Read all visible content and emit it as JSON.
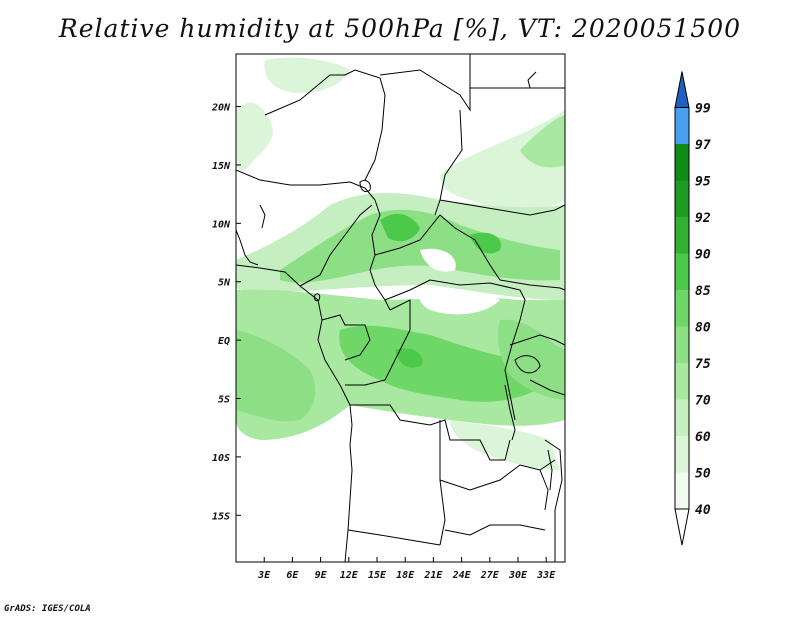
{
  "title": "Relative humidity at 500hPa [%], VT: 2020051500",
  "footer": "GrADS: IGES/COLA",
  "map": {
    "lon_range": [
      0,
      35
    ],
    "lat_range": [
      -19,
      24.5
    ],
    "lon_ticks": [
      {
        "value": 3,
        "label": "3E"
      },
      {
        "value": 6,
        "label": "6E"
      },
      {
        "value": 9,
        "label": "9E"
      },
      {
        "value": 12,
        "label": "12E"
      },
      {
        "value": 15,
        "label": "15E"
      },
      {
        "value": 18,
        "label": "18E"
      },
      {
        "value": 21,
        "label": "21E"
      },
      {
        "value": 24,
        "label": "24E"
      },
      {
        "value": 27,
        "label": "27E"
      },
      {
        "value": 30,
        "label": "30E"
      },
      {
        "value": 33,
        "label": "33E"
      }
    ],
    "lat_ticks": [
      {
        "value": 20,
        "label": "20N"
      },
      {
        "value": 15,
        "label": "15N"
      },
      {
        "value": 10,
        "label": "10N"
      },
      {
        "value": 5,
        "label": "5N"
      },
      {
        "value": 0,
        "label": "EQ"
      },
      {
        "value": -5,
        "label": "5S"
      },
      {
        "value": -10,
        "label": "10S"
      },
      {
        "value": -15,
        "label": "15S"
      }
    ]
  },
  "colorbar": {
    "levels": [
      {
        "label": "40",
        "color": "#f0fcf0"
      },
      {
        "label": "50",
        "color": "#dbf5d8"
      },
      {
        "label": "60",
        "color": "#c5efc0"
      },
      {
        "label": "70",
        "color": "#a8e8a1"
      },
      {
        "label": "75",
        "color": "#8ddf85"
      },
      {
        "label": "80",
        "color": "#6fd768"
      },
      {
        "label": "85",
        "color": "#4cc84a"
      },
      {
        "label": "90",
        "color": "#31b031"
      },
      {
        "label": "92",
        "color": "#1f9a22"
      },
      {
        "label": "95",
        "color": "#118a18"
      },
      {
        "label": "97",
        "color": "#4aa0ee"
      },
      {
        "label": "99",
        "color": "#2b72d8"
      }
    ],
    "under_color": "#ffffff",
    "over_color": "#1f5fc0"
  }
}
